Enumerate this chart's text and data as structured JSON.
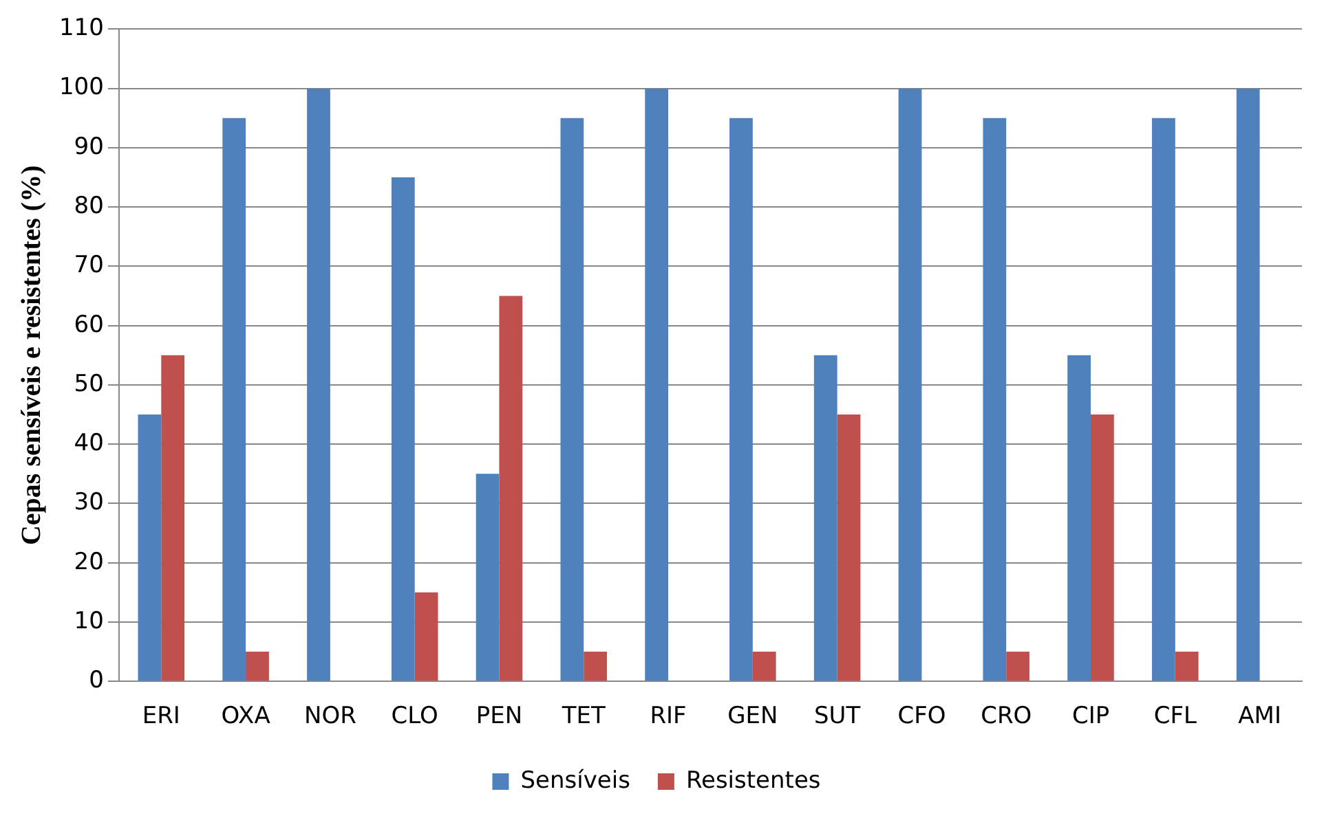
{
  "chart_data": {
    "type": "bar",
    "ylabel": "Cepas sensíveis e resistentes (%)",
    "categories": [
      "ERI",
      "OXA",
      "NOR",
      "CLO",
      "PEN",
      "TET",
      "RIF",
      "GEN",
      "SUT",
      "CFO",
      "CRO",
      "CIP",
      "CFL",
      "AMI"
    ],
    "series": [
      {
        "name": "Sensíveis",
        "color": "#4f81bd",
        "values": [
          45,
          95,
          100,
          85,
          35,
          95,
          100,
          95,
          55,
          100,
          95,
          55,
          95,
          100
        ]
      },
      {
        "name": "Resistentes",
        "color": "#c0504d",
        "values": [
          55,
          5,
          0,
          15,
          65,
          5,
          0,
          5,
          45,
          0,
          5,
          45,
          5,
          0
        ]
      }
    ],
    "ylim": [
      0,
      110
    ],
    "yticks": [
      0,
      10,
      20,
      30,
      40,
      50,
      60,
      70,
      80,
      90,
      100,
      110
    ],
    "grid": "y",
    "legend": "bottom"
  }
}
